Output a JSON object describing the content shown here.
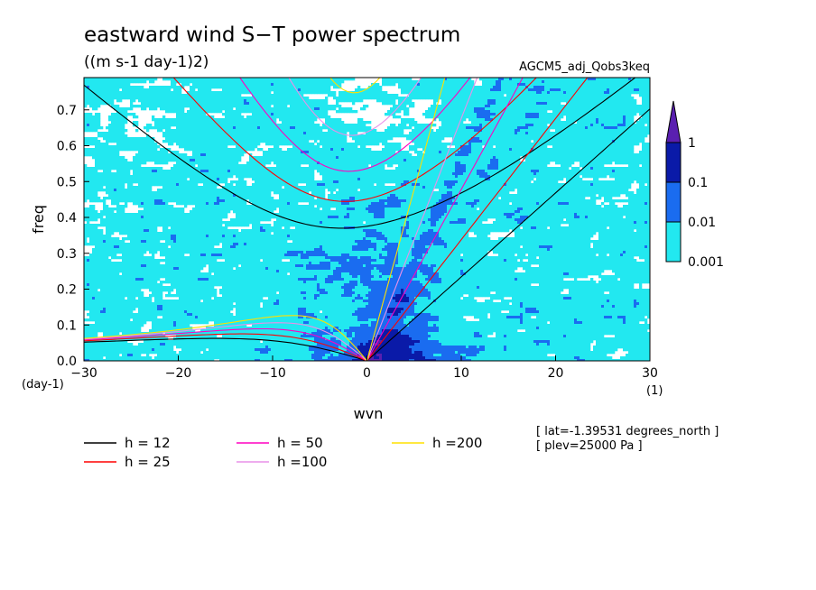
{
  "chart_data": {
    "type": "heatmap",
    "title": "eastward wind S−T power spectrum",
    "subtitle": "((m s-1 day-1)2)",
    "model": "AGCM5_adj_Qobs3keq",
    "xlabel": "wvn",
    "ylabel": "freq",
    "x_unit": "(1)",
    "y_unit": "(day-1)",
    "xlim": [
      -30,
      30
    ],
    "ylim": [
      0,
      0.79
    ],
    "xticks": [
      -30,
      -20,
      -10,
      0,
      10,
      20,
      30
    ],
    "xtick_labels": [
      "−30",
      "−20",
      "−10",
      "0",
      "10",
      "20",
      "30"
    ],
    "yticks": [
      0.0,
      0.1,
      0.2,
      0.3,
      0.4,
      0.5,
      0.6,
      0.7
    ],
    "ytick_labels": [
      "0.0",
      "0.1",
      "0.2",
      "0.3",
      "0.4",
      "0.5",
      "0.6",
      "0.7"
    ],
    "colorbar": {
      "levels": [
        "1",
        "0.1",
        "0.01",
        "0.001"
      ],
      "colors": [
        "#5a1fb0",
        "#0a1aa8",
        "#1a6cf0",
        "#22e8f0"
      ]
    },
    "legend": [
      {
        "label": "h = 12",
        "color": "#000000"
      },
      {
        "label": "h = 25",
        "color": "#ff0000"
      },
      {
        "label": "h = 50",
        "color": "#ff00c0"
      },
      {
        "label": "h =100",
        "color": "#e890e8"
      },
      {
        "label": "h =200",
        "color": "#ffe000"
      }
    ],
    "info": [
      "[ lat=-1.39531 degrees_north ]",
      "[ plev=25000 Pa ]"
    ],
    "dispersion_curves": {
      "kelvin_peaks": [
        {
          "h": 12,
          "freq_at_k0": 0.0
        },
        {
          "h": 25,
          "freq_at_k0": 0.0
        }
      ],
      "inertia_gravity_minima": [
        {
          "h": 12,
          "freq_at_k0": 0.37
        },
        {
          "h": 25,
          "freq_at_k0": 0.44
        },
        {
          "h": 50,
          "freq_at_k0": 0.525
        },
        {
          "h": 100,
          "freq_at_k0": 0.62
        },
        {
          "h": 200,
          "freq_at_k0": 0.74
        }
      ]
    }
  }
}
